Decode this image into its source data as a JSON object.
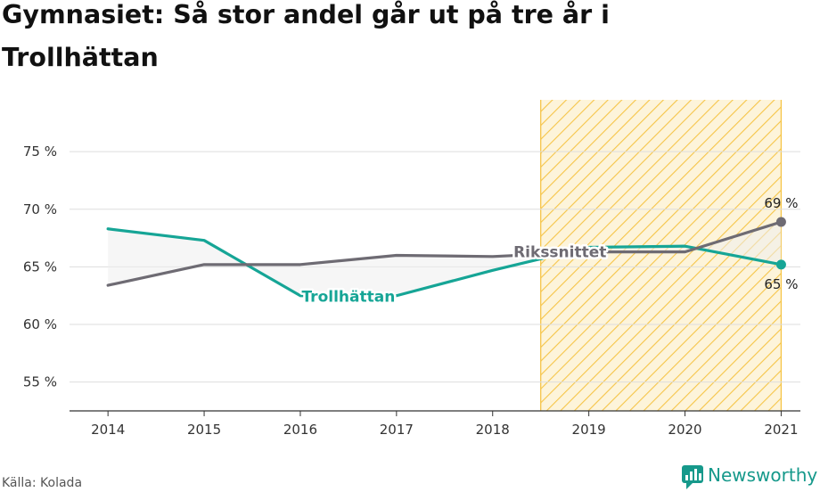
{
  "title_lines": [
    "Gymnasiet: Så stor andel går ut på tre år i",
    "Trollhättan"
  ],
  "source": "Källa: Kolada",
  "brand": "Newsworthy",
  "colors": {
    "trollhattan": "#16a596",
    "riket": "#6e6b73",
    "highlight": "#f6c548",
    "gap_fill": "#eeeeee",
    "grid": "#dddddd",
    "axis": "#333333"
  },
  "chart_data": {
    "type": "line",
    "x": [
      2014,
      2015,
      2016,
      2017,
      2018,
      2019,
      2020,
      2021
    ],
    "y_ticks": [
      55,
      60,
      65,
      70,
      75
    ],
    "y_tick_labels": [
      "55 %",
      "60 %",
      "65 %",
      "70 %",
      "75 %"
    ],
    "ylim": [
      52.5,
      79.5
    ],
    "xlim": [
      2013.6,
      2021.2
    ],
    "series": [
      {
        "name": "Trollhättan",
        "values": [
          68.3,
          67.3,
          62.5,
          62.5,
          64.7,
          66.7,
          66.8,
          65.2
        ],
        "end_label": "65 %"
      },
      {
        "name": "Rikssnittet",
        "values": [
          63.4,
          65.2,
          65.2,
          66.0,
          65.9,
          66.3,
          66.3,
          68.9
        ],
        "end_label": "69 %"
      }
    ],
    "highlight_range": [
      2018.5,
      2021
    ],
    "grid": true
  }
}
